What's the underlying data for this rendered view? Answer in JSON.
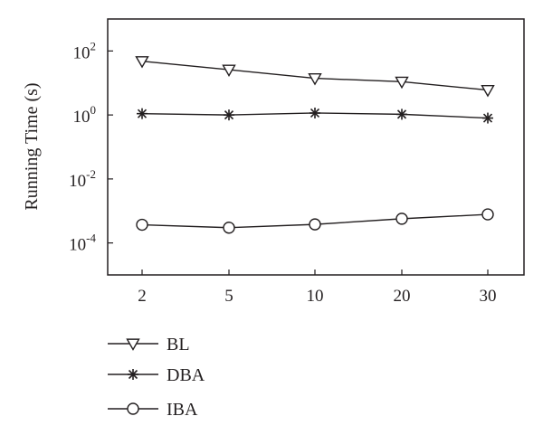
{
  "chart_data": {
    "type": "line",
    "ylabel": "Running Time (s)",
    "xlabel": "",
    "yscale": "log",
    "ylim": [
      1e-05,
      1000
    ],
    "categories": [
      "2",
      "5",
      "10",
      "20",
      "30"
    ],
    "y_ticks": [
      {
        "base": "10",
        "exp": "2",
        "value": 100
      },
      {
        "base": "10",
        "exp": "0",
        "value": 1
      },
      {
        "base": "10",
        "exp": "-2",
        "value": 0.01
      },
      {
        "base": "10",
        "exp": "-4",
        "value": 0.0001
      }
    ],
    "legend_position": "bottom",
    "series": [
      {
        "name": "BL",
        "marker": "triangle-down",
        "values": [
          48,
          26,
          14,
          11,
          6
        ]
      },
      {
        "name": "DBA",
        "marker": "asterisk",
        "values": [
          1.1,
          1.0,
          1.15,
          1.05,
          0.8
        ]
      },
      {
        "name": "IBA",
        "marker": "circle",
        "values": [
          0.00037,
          0.0003,
          0.00038,
          0.00057,
          0.00078
        ]
      }
    ],
    "grid": false,
    "color": "#231f20"
  }
}
